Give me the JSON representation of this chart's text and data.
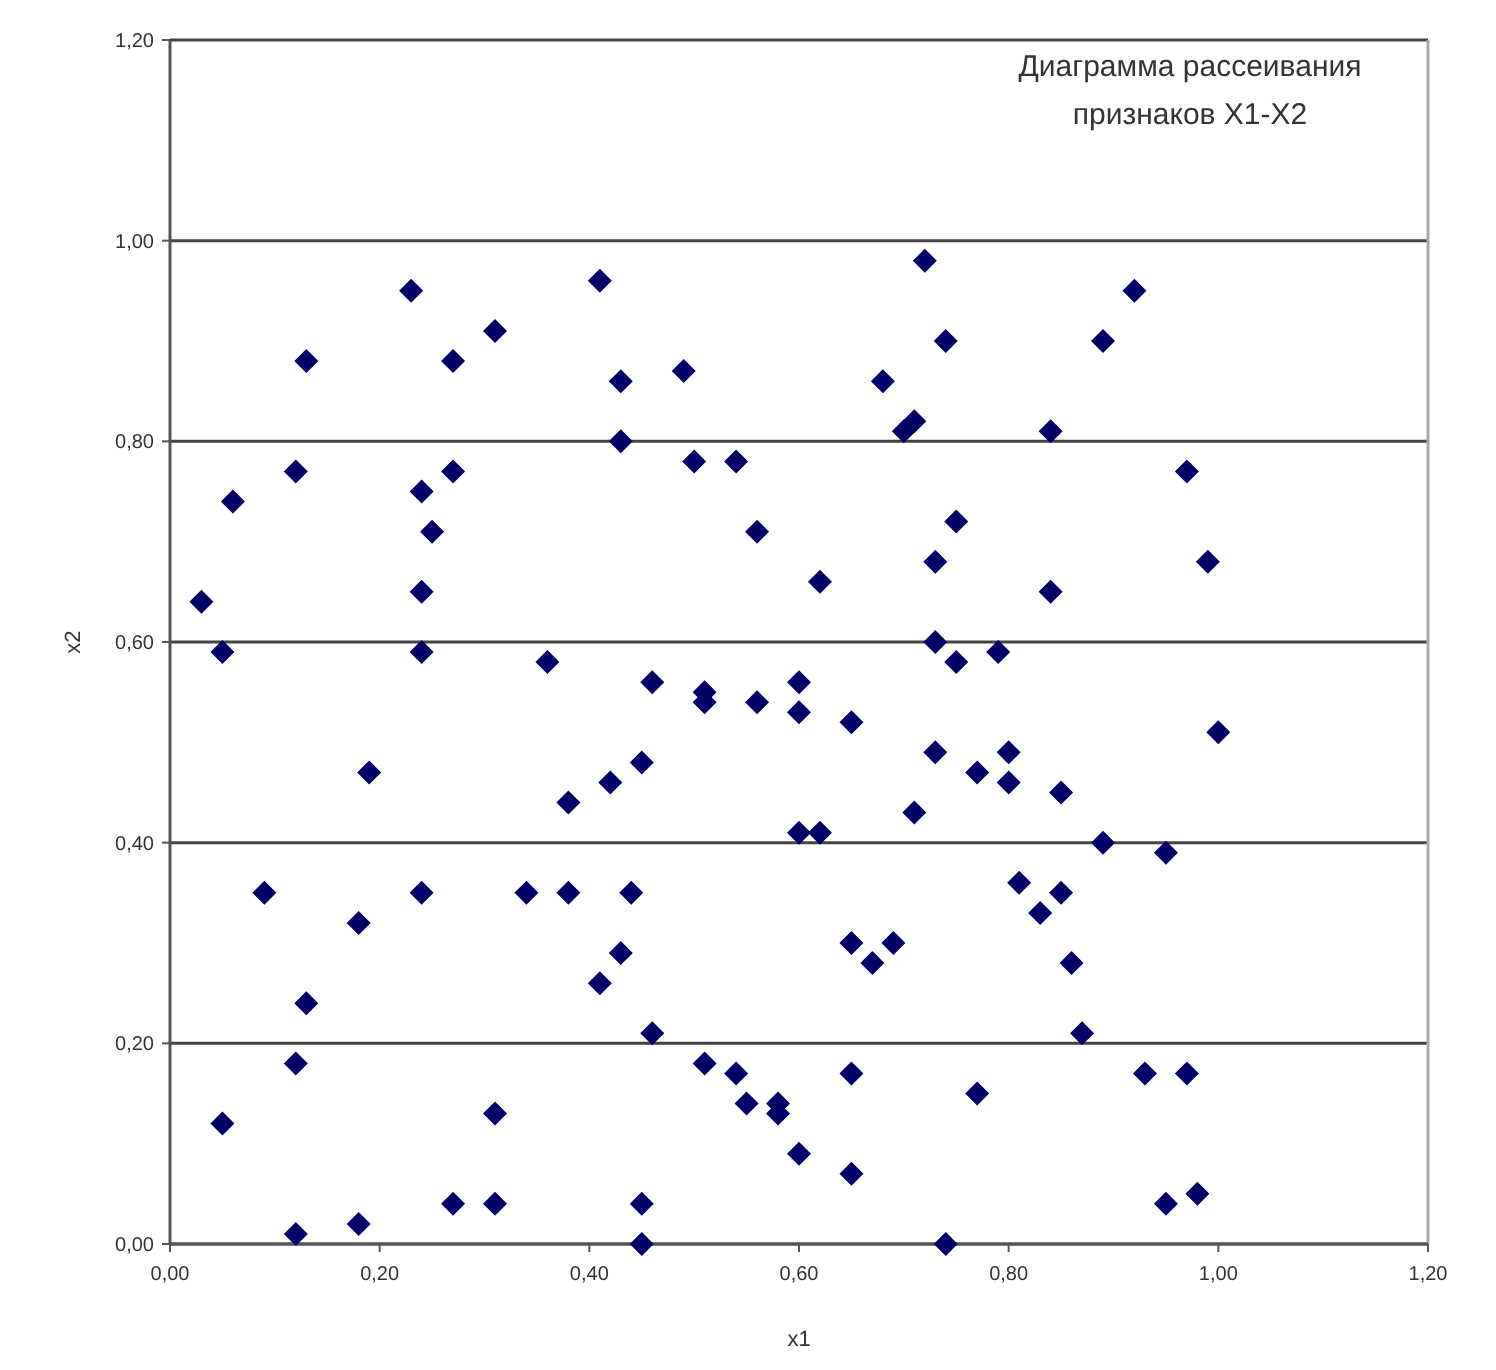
{
  "chart_data": {
    "type": "scatter",
    "title": "Диаграмма рассеивания признаков X1-X2",
    "xlabel": "x1",
    "ylabel": "x2",
    "marker": "diamond",
    "grid": "y",
    "xlim": [
      0,
      1.2
    ],
    "ylim": [
      0,
      1.2
    ],
    "xticks": [
      {
        "value": 0,
        "label": "0,00"
      },
      {
        "value": 0.2,
        "label": "0,20"
      },
      {
        "value": 0.4,
        "label": "0,40"
      },
      {
        "value": 0.6,
        "label": "0,60"
      },
      {
        "value": 0.8,
        "label": "0,80"
      },
      {
        "value": 1,
        "label": "1,00"
      },
      {
        "value": 1.2,
        "label": "1,20"
      }
    ],
    "yticks": [
      {
        "value": 0,
        "label": "0,00"
      },
      {
        "value": 0.2,
        "label": "0,20"
      },
      {
        "value": 0.4,
        "label": "0,40"
      },
      {
        "value": 0.6,
        "label": "0,60"
      },
      {
        "value": 0.8,
        "label": "0,80"
      },
      {
        "value": 1,
        "label": "1,00"
      },
      {
        "value": 1.2,
        "label": "1,20"
      }
    ],
    "series": [
      {
        "color": "#000066",
        "x": [
          0.23,
          0.31,
          0.27,
          0.13,
          0.12,
          0.06,
          0.27,
          0.24,
          0.25,
          0.24,
          0.03,
          0.05,
          0.24,
          0.36,
          0.19,
          0.38,
          0.09,
          0.18,
          0.24,
          0.34,
          0.13,
          0.12,
          0.05,
          0.31,
          0.27,
          0.31,
          0.12,
          0.18,
          0.41,
          0.43,
          0.49,
          0.43,
          0.5,
          0.54,
          0.56,
          0.62,
          0.72,
          0.74,
          0.68,
          0.7,
          0.71,
          0.75,
          0.73,
          0.73,
          0.75,
          0.79,
          0.46,
          0.51,
          0.51,
          0.56,
          0.6,
          0.6,
          0.65,
          0.45,
          0.42,
          0.73,
          0.77,
          0.8,
          0.8,
          0.71,
          0.6,
          0.62,
          0.44,
          0.43,
          0.41,
          0.65,
          0.67,
          0.69,
          0.81,
          0.46,
          0.51,
          0.54,
          0.55,
          0.58,
          0.58,
          0.65,
          0.77,
          0.6,
          0.65,
          0.45,
          0.45,
          0.74,
          0.92,
          0.89,
          0.84,
          0.97,
          0.99,
          0.84,
          1.0,
          0.85,
          0.89,
          0.95,
          0.85,
          0.83,
          0.86,
          0.87,
          0.93,
          0.97,
          0.95,
          0.98,
          0.38
        ],
        "values": [
          0.95,
          0.91,
          0.88,
          0.88,
          0.77,
          0.74,
          0.77,
          0.75,
          0.71,
          0.65,
          0.64,
          0.59,
          0.59,
          0.58,
          0.47,
          0.35,
          0.35,
          0.32,
          0.35,
          0.35,
          0.24,
          0.18,
          0.12,
          0.13,
          0.04,
          0.04,
          0.01,
          0.02,
          0.96,
          0.86,
          0.87,
          0.8,
          0.78,
          0.78,
          0.71,
          0.66,
          0.98,
          0.9,
          0.86,
          0.81,
          0.82,
          0.72,
          0.68,
          0.6,
          0.58,
          0.59,
          0.56,
          0.55,
          0.54,
          0.54,
          0.56,
          0.53,
          0.52,
          0.48,
          0.46,
          0.49,
          0.47,
          0.49,
          0.46,
          0.43,
          0.41,
          0.41,
          0.35,
          0.29,
          0.26,
          0.3,
          0.28,
          0.3,
          0.36,
          0.21,
          0.18,
          0.17,
          0.14,
          0.14,
          0.13,
          0.17,
          0.15,
          0.09,
          0.07,
          0.04,
          0.0,
          0.0,
          0.95,
          0.9,
          0.81,
          0.77,
          0.68,
          0.65,
          0.51,
          0.45,
          0.4,
          0.39,
          0.35,
          0.33,
          0.28,
          0.21,
          0.17,
          0.17,
          0.04,
          0.05,
          0.44
        ]
      }
    ]
  }
}
